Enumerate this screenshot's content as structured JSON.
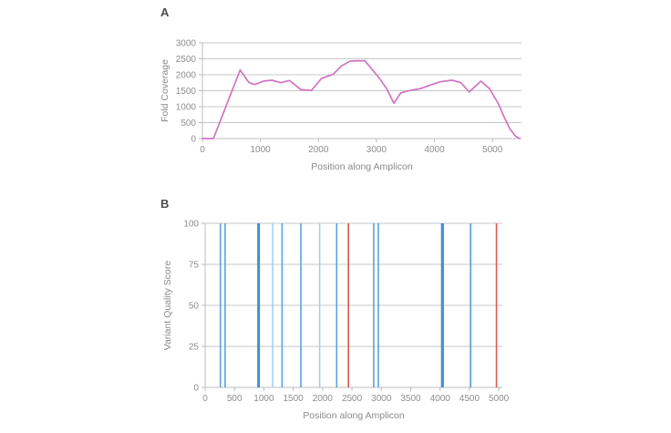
{
  "panels": [
    {
      "label": "A"
    },
    {
      "label": "B"
    }
  ],
  "colors": {
    "grid": "#c7c7c7",
    "axis_line": "#bdbdbd",
    "tick_text": "#8e8e8e",
    "axis_title_text": "#8a8a8a",
    "coverage_line": "#cf74c3",
    "variant_blue": "#58a5db",
    "variant_blue_dark": "#418fd1",
    "variant_blue_light": "#9fcdee",
    "variant_red": "#dd584f"
  },
  "chart_data": [
    {
      "type": "line",
      "title": "",
      "xlabel": "Position along Amplicon",
      "ylabel": "Fold Coverage",
      "xlim": [
        0,
        5500
      ],
      "ylim": [
        0,
        3000
      ],
      "xticks": [
        0,
        1000,
        2000,
        3000,
        4000,
        5000
      ],
      "yticks": [
        0,
        500,
        1000,
        1500,
        2000,
        2500,
        3000
      ],
      "grid": "horizontal",
      "legend": "none",
      "series": [
        {
          "name": "fold-coverage",
          "color_key": "coverage_line",
          "points": [
            [
              0,
              0
            ],
            [
              190,
              0
            ],
            [
              650,
              2150
            ],
            [
              800,
              1760
            ],
            [
              900,
              1690
            ],
            [
              1050,
              1800
            ],
            [
              1200,
              1830
            ],
            [
              1350,
              1750
            ],
            [
              1500,
              1820
            ],
            [
              1700,
              1530
            ],
            [
              1880,
              1510
            ],
            [
              2050,
              1880
            ],
            [
              2250,
              2010
            ],
            [
              2400,
              2280
            ],
            [
              2550,
              2430
            ],
            [
              2800,
              2440
            ],
            [
              3050,
              1890
            ],
            [
              3180,
              1550
            ],
            [
              3300,
              1110
            ],
            [
              3420,
              1430
            ],
            [
              3600,
              1520
            ],
            [
              3750,
              1560
            ],
            [
              3900,
              1660
            ],
            [
              4100,
              1780
            ],
            [
              4300,
              1830
            ],
            [
              4450,
              1760
            ],
            [
              4600,
              1460
            ],
            [
              4800,
              1800
            ],
            [
              4950,
              1560
            ],
            [
              5100,
              1100
            ],
            [
              5200,
              680
            ],
            [
              5300,
              300
            ],
            [
              5400,
              70
            ],
            [
              5470,
              0
            ]
          ]
        }
      ]
    },
    {
      "type": "bar",
      "title": "",
      "xlabel": "Position along Amplicon",
      "ylabel": "Variant Quality Score",
      "xlim": [
        0,
        5060
      ],
      "ylim": [
        0,
        100
      ],
      "xticks": [
        0,
        500,
        1000,
        1500,
        2000,
        2500,
        3000,
        3500,
        4000,
        4500,
        5000
      ],
      "yticks": [
        0,
        25,
        50,
        75,
        100
      ],
      "grid": "horizontal",
      "legend": "none",
      "bars": [
        {
          "x": 260,
          "value": 100,
          "color_key": "variant_blue",
          "w": 1.6
        },
        {
          "x": 340,
          "value": 100,
          "color_key": "variant_blue",
          "w": 1.6
        },
        {
          "x": 910,
          "value": 100,
          "color_key": "variant_blue_dark",
          "w": 3.0
        },
        {
          "x": 1150,
          "value": 100,
          "color_key": "variant_blue_light",
          "w": 1.5
        },
        {
          "x": 1310,
          "value": 100,
          "color_key": "variant_blue",
          "w": 1.6
        },
        {
          "x": 1630,
          "value": 100,
          "color_key": "variant_blue",
          "w": 1.6
        },
        {
          "x": 1950,
          "value": 100,
          "color_key": "variant_blue_light",
          "w": 1.5
        },
        {
          "x": 2240,
          "value": 100,
          "color_key": "variant_blue",
          "w": 1.6
        },
        {
          "x": 2440,
          "value": 100,
          "color_key": "variant_red",
          "w": 1.6
        },
        {
          "x": 2870,
          "value": 100,
          "color_key": "variant_blue",
          "w": 1.6
        },
        {
          "x": 2950,
          "value": 100,
          "color_key": "variant_blue",
          "w": 1.6
        },
        {
          "x": 4040,
          "value": 100,
          "color_key": "variant_blue_dark",
          "w": 3.2
        },
        {
          "x": 4520,
          "value": 100,
          "color_key": "variant_blue",
          "w": 1.8
        },
        {
          "x": 4960,
          "value": 100,
          "color_key": "variant_red",
          "w": 1.6
        }
      ]
    }
  ],
  "layout_note": "Panel A: amplicon fold-coverage profile. Panel B: variant quality scores at detected variant positions."
}
